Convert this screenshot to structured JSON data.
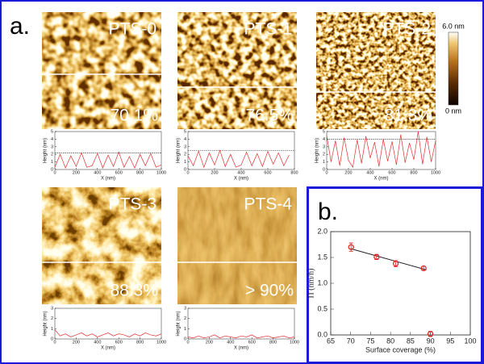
{
  "figure": {
    "panel_a_label": "a.",
    "panel_b_label": "b."
  },
  "images": [
    {
      "name": "PTS-0",
      "coverage": "70.1%"
    },
    {
      "name": "PTS-1",
      "coverage": "76.5%"
    },
    {
      "name": "PTS-2",
      "coverage": "81.3%"
    },
    {
      "name": "PTS-3",
      "coverage": "88.3%"
    },
    {
      "name": "PTS-4",
      "coverage": "> 90%"
    }
  ],
  "colorbar": {
    "max": "6.0 nm",
    "min": "0 nm"
  },
  "chart_data": [
    {
      "type": "line",
      "xlabel": "X (nm)",
      "ylabel": "Height (nm)",
      "color": "#e03030",
      "reference": 2.2,
      "x": [
        0,
        50,
        100,
        150,
        200,
        250,
        300,
        350,
        400,
        450,
        500,
        550,
        600,
        650,
        700,
        750,
        800,
        850,
        900,
        950,
        1000
      ],
      "y": [
        0.3,
        2.0,
        0.2,
        1.8,
        0.4,
        2.2,
        0.3,
        0.5,
        2.1,
        0.2,
        1.9,
        0.4,
        2.3,
        0.3,
        1.7,
        0.2,
        2.0,
        0.5,
        2.1,
        0.3,
        0.6
      ],
      "xlim": [
        0,
        1000
      ],
      "xticks": [
        0,
        200,
        400,
        600,
        800,
        1000
      ],
      "ylim": [
        0,
        5
      ],
      "yticks": [
        0,
        1,
        2,
        3,
        4,
        5
      ]
    },
    {
      "type": "line",
      "xlabel": "X (nm)",
      "ylabel": "Height (nm)",
      "color": "#e03030",
      "reference": 2.5,
      "x": [
        0,
        40,
        80,
        120,
        160,
        200,
        240,
        280,
        320,
        360,
        400,
        440,
        480,
        520,
        560,
        600,
        640,
        680,
        720,
        760
      ],
      "y": [
        1.8,
        0.5,
        2.4,
        0.3,
        2.2,
        0.6,
        2.5,
        0.4,
        2.0,
        0.3,
        0.6,
        2.3,
        0.5,
        2.1,
        0.4,
        2.4,
        0.7,
        2.2,
        0.5,
        1.9
      ],
      "xlim": [
        0,
        800
      ],
      "xticks": [
        0,
        200,
        400,
        600,
        800
      ],
      "ylim": [
        0,
        5
      ],
      "yticks": [
        0,
        1,
        2,
        3,
        4,
        5
      ]
    },
    {
      "type": "line",
      "xlabel": "X (nm)",
      "ylabel": "Height (nm)",
      "color": "#e03030",
      "reference": 4.0,
      "x": [
        0,
        40,
        80,
        120,
        160,
        200,
        240,
        280,
        320,
        360,
        400,
        440,
        480,
        520,
        560,
        600,
        640,
        680,
        720,
        760,
        800,
        840,
        880,
        920,
        960,
        1000
      ],
      "y": [
        4.5,
        1.0,
        3.8,
        0.5,
        4.2,
        1.2,
        0.3,
        3.9,
        0.8,
        4.4,
        1.5,
        3.6,
        0.4,
        4.0,
        1.1,
        3.7,
        0.6,
        4.6,
        0.9,
        3.5,
        1.3,
        5.0,
        0.7,
        4.3,
        1.0,
        3.8
      ],
      "xlim": [
        0,
        1000
      ],
      "xticks": [
        0,
        200,
        400,
        600,
        800,
        1000
      ],
      "ylim": [
        0,
        5
      ],
      "yticks": [
        0,
        1,
        2,
        3,
        4,
        5
      ]
    },
    {
      "type": "line",
      "xlabel": "X (nm)",
      "ylabel": "Height (nm)",
      "color": "#e03030",
      "x": [
        0,
        50,
        100,
        150,
        200,
        250,
        300,
        350,
        400,
        450,
        500,
        550,
        600,
        650,
        700,
        750,
        800,
        850,
        900,
        950,
        1000
      ],
      "y": [
        0.9,
        0.3,
        0.5,
        0.2,
        0.4,
        0.6,
        0.3,
        0.5,
        0.2,
        0.4,
        0.6,
        0.3,
        0.5,
        0.4,
        0.2,
        0.5,
        0.3,
        0.6,
        0.4,
        0.3,
        0.5
      ],
      "xlim": [
        0,
        1000
      ],
      "xticks": [
        0,
        200,
        400,
        600,
        800,
        1000
      ],
      "ylim": [
        0,
        3
      ],
      "yticks": [
        0,
        1,
        2,
        3
      ]
    },
    {
      "type": "line",
      "xlabel": "X (nm)",
      "ylabel": "Height (nm)",
      "color": "#e03030",
      "x": [
        0,
        50,
        100,
        150,
        200,
        250,
        300,
        350,
        400,
        450,
        500,
        550,
        600,
        650,
        700,
        750,
        800,
        850,
        900,
        950,
        1000
      ],
      "y": [
        0.2,
        0.1,
        0.3,
        0.1,
        0.2,
        0.4,
        0.1,
        0.3,
        0.2,
        0.1,
        0.3,
        0.2,
        0.4,
        0.1,
        0.2,
        0.3,
        0.1,
        0.2,
        0.3,
        0.1,
        0.2
      ],
      "xlim": [
        0,
        1000
      ],
      "xticks": [
        0,
        200,
        400,
        600,
        800,
        1000
      ],
      "ylim": [
        0,
        3
      ],
      "yticks": [
        0,
        1,
        2,
        3
      ]
    },
    {
      "type": "scatter",
      "xlabel": "Surface coverage (%)",
      "ylabel": "Π (nm/h)",
      "color": "#e02020",
      "x": [
        70.1,
        76.5,
        81.3,
        88.3,
        90.0
      ],
      "y": [
        1.7,
        1.51,
        1.38,
        1.29,
        0.02
      ],
      "errors": [
        0.08,
        0.05,
        0.06,
        0.04,
        0.05
      ],
      "fit": {
        "x": [
          70,
          89
        ],
        "y": [
          1.67,
          1.26
        ]
      },
      "xlim": [
        65,
        100
      ],
      "xticks": [
        65,
        70,
        75,
        80,
        85,
        90,
        95,
        100
      ],
      "ylim": [
        0,
        2
      ],
      "yticks": [
        {
          "value": 0,
          "label": "0.0"
        },
        0.5,
        {
          "value": 1,
          "label": "1.0"
        },
        1.5,
        {
          "value": 2,
          "label": "2.0"
        }
      ]
    }
  ]
}
